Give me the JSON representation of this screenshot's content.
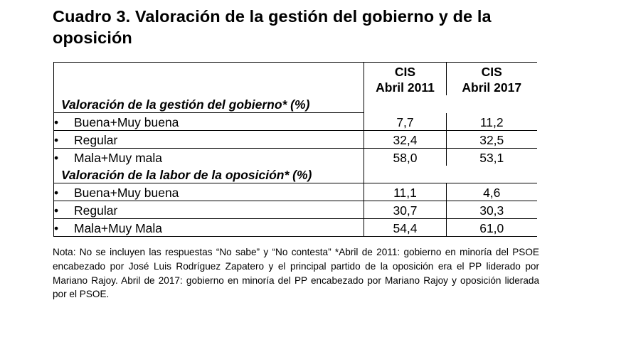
{
  "title": "Cuadro 3. Valoración de la gestión del gobierno y de la oposición",
  "columns": [
    {
      "line1": "CIS",
      "line2": "Abril 2011"
    },
    {
      "line1": "CIS",
      "line2": "Abril 2017"
    }
  ],
  "sections": [
    {
      "label": "Valoración de la gestión del gobierno* (%)",
      "rows": [
        {
          "label": "Buena+Muy buena",
          "values": [
            "7,7",
            "11,2"
          ]
        },
        {
          "label": "Regular",
          "values": [
            "32,4",
            "32,5"
          ]
        },
        {
          "label": "Mala+Muy mala",
          "values": [
            "58,0",
            "53,1"
          ]
        }
      ]
    },
    {
      "label": "Valoración de la labor de la oposición* (%)",
      "rows": [
        {
          "label": "Buena+Muy buena",
          "values": [
            "11,1",
            "4,6"
          ]
        },
        {
          "label": "Regular",
          "values": [
            "30,7",
            "30,3"
          ]
        },
        {
          "label": "Mala+Muy Mala",
          "values": [
            "54,4",
            "61,0"
          ]
        }
      ]
    }
  ],
  "bullet": "•",
  "note": "Nota: No se incluyen las respuestas “No sabe” y “No contesta” *Abril de 2011: gobierno en minoría del PSOE encabezado por José Luis Rodríguez Zapatero y el principal partido de la oposición era el PP liderado por Mariano Rajoy. Abril de 2017: gobierno en minoría del PP encabezado por Mariano Rajoy y oposición liderada por el PSOE."
}
